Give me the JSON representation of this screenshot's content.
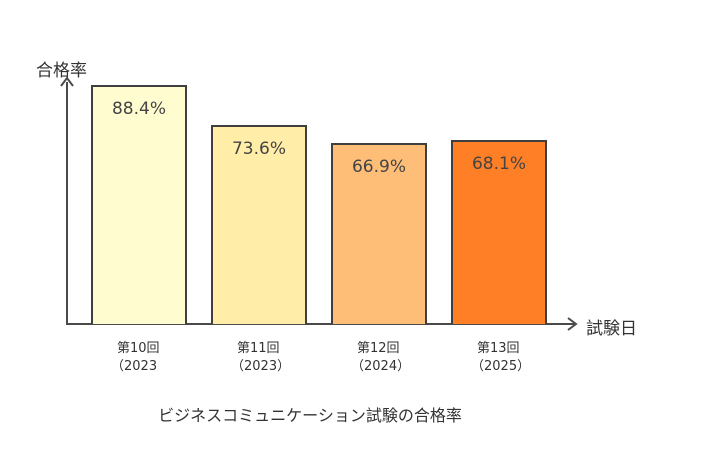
{
  "chart_data": {
    "type": "bar",
    "title": "ビジネスコミュニケーション試験の合格率",
    "xlabel": "試験日",
    "ylabel": "合格率",
    "categories": [
      "第10回\n（2023",
      "第11回\n（2023）",
      "第12回\n（2024）",
      "第13回\n（2025）"
    ],
    "category_lines": [
      [
        "第10回",
        "（2023"
      ],
      [
        "第11回",
        "（2023）"
      ],
      [
        "第12回",
        "（2024）"
      ],
      [
        "第13回",
        "（2025）"
      ]
    ],
    "values": [
      88.4,
      73.6,
      66.9,
      68.1
    ],
    "value_labels": [
      "88.4%",
      "73.6%",
      "66.9%",
      "68.1%"
    ],
    "colors": [
      "#FFFDD0",
      "#FFEDA8",
      "#FFBE78",
      "#FF7F27"
    ],
    "grid": false,
    "legend": null
  }
}
